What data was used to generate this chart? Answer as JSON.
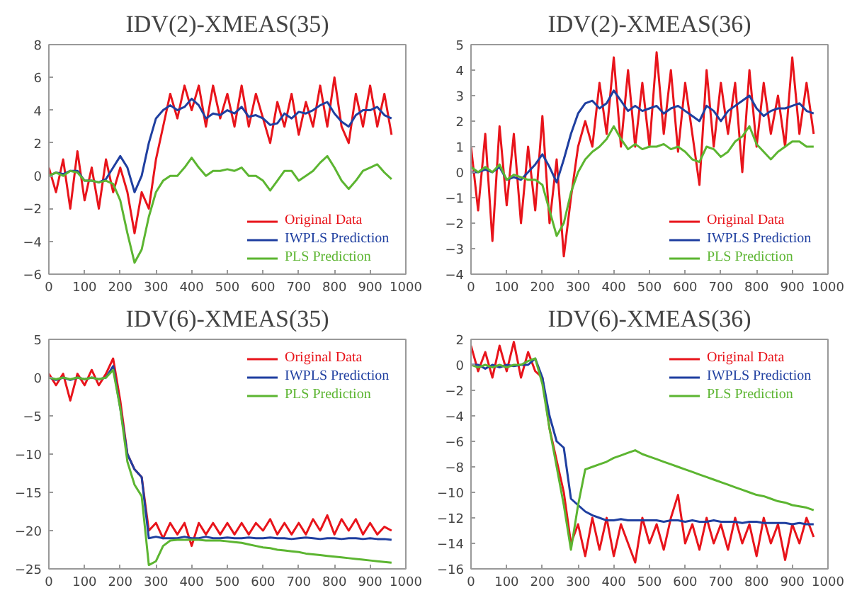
{
  "chart_data": [
    {
      "type": "line",
      "title": "IDV(2)-XMEAS(35)",
      "x": [
        0,
        20,
        40,
        60,
        80,
        100,
        120,
        140,
        160,
        180,
        200,
        220,
        240,
        260,
        280,
        300,
        320,
        340,
        360,
        380,
        400,
        420,
        440,
        460,
        480,
        500,
        520,
        540,
        560,
        580,
        600,
        620,
        640,
        660,
        680,
        700,
        720,
        740,
        760,
        780,
        800,
        820,
        840,
        860,
        880,
        900,
        920,
        940,
        960
      ],
      "xlim": [
        0,
        1000
      ],
      "xticks": [
        0,
        100,
        200,
        300,
        400,
        500,
        600,
        700,
        800,
        900,
        1000
      ],
      "ylim": [
        -6,
        8
      ],
      "yticks": [
        -6,
        -4,
        -2,
        0,
        2,
        4,
        6,
        8
      ],
      "grid": false,
      "legend": "bottom right",
      "series": [
        {
          "name": "Original Data",
          "color": "#e8141b",
          "values": [
            0.5,
            -1,
            1,
            -2,
            1.5,
            -1.5,
            0.5,
            -2,
            1,
            -1,
            0.5,
            -1,
            -3.5,
            -1,
            -2,
            1,
            3,
            5,
            3.5,
            5.5,
            4,
            5.5,
            3,
            5.5,
            3.5,
            5,
            3,
            5.5,
            3,
            5,
            3.5,
            2,
            4.5,
            3,
            5,
            2.5,
            4.5,
            3,
            5.5,
            3,
            6,
            3,
            2,
            5,
            3,
            5.5,
            3,
            5,
            2.5
          ]
        },
        {
          "name": "IWPLS Prediction",
          "color": "#1f3fa0",
          "values": [
            0,
            0.2,
            0.1,
            0.3,
            0.3,
            -0.3,
            -0.3,
            -0.4,
            -0.2,
            0.5,
            1.2,
            0.5,
            -1,
            0,
            2,
            3.5,
            4,
            4.3,
            4,
            4.2,
            4.7,
            4.3,
            3.5,
            3.8,
            3.7,
            4,
            3.8,
            4.2,
            3.6,
            3.7,
            3.5,
            3.1,
            3.2,
            3.8,
            3.5,
            3.9,
            3.8,
            4,
            4.3,
            4.5,
            3.8,
            3.3,
            3,
            3.7,
            4,
            4,
            4.2,
            3.7,
            3.5
          ]
        },
        {
          "name": "PLS Prediction",
          "color": "#5cb531",
          "values": [
            0,
            0.2,
            0,
            0.3,
            0.2,
            -0.3,
            -0.3,
            -0.4,
            -0.3,
            -0.5,
            -1.5,
            -3.5,
            -5.3,
            -4.5,
            -2.5,
            -1,
            -0.3,
            0,
            0,
            0.5,
            1.1,
            0.5,
            0,
            0.3,
            0.3,
            0.4,
            0.3,
            0.5,
            0,
            0,
            -0.3,
            -0.9,
            -0.3,
            0.3,
            0.3,
            -0.3,
            0,
            0.3,
            0.8,
            1.2,
            0.5,
            -0.3,
            -0.8,
            -0.3,
            0.3,
            0.5,
            0.7,
            0.2,
            -0.2
          ]
        }
      ]
    },
    {
      "type": "line",
      "title": "IDV(2)-XMEAS(36)",
      "x": [
        0,
        20,
        40,
        60,
        80,
        100,
        120,
        140,
        160,
        180,
        200,
        220,
        240,
        260,
        280,
        300,
        320,
        340,
        360,
        380,
        400,
        420,
        440,
        460,
        480,
        500,
        520,
        540,
        560,
        580,
        600,
        620,
        640,
        660,
        680,
        700,
        720,
        740,
        760,
        780,
        800,
        820,
        840,
        860,
        880,
        900,
        920,
        940,
        960
      ],
      "xlim": [
        0,
        1000
      ],
      "xticks": [
        0,
        100,
        200,
        300,
        400,
        500,
        600,
        700,
        800,
        900,
        1000
      ],
      "ylim": [
        -4,
        5
      ],
      "yticks": [
        -4,
        -3,
        -2,
        -1,
        0,
        1,
        2,
        3,
        4,
        5
      ],
      "grid": false,
      "legend": "bottom right",
      "series": [
        {
          "name": "Original Data",
          "color": "#e8141b",
          "values": [
            1,
            -1.5,
            1.5,
            -2.7,
            1.8,
            -1.3,
            1.5,
            -2,
            1,
            -1.5,
            2.2,
            -2,
            0.5,
            -3.3,
            -1,
            1,
            2,
            1,
            3.5,
            1.5,
            4.5,
            1,
            4,
            1,
            3.5,
            1,
            4.7,
            1.5,
            4,
            0.8,
            3.5,
            1.5,
            -0.5,
            4,
            1,
            3.5,
            1.5,
            3.5,
            0,
            4,
            1,
            3.5,
            1.5,
            3,
            1,
            4.5,
            1.5,
            3.5,
            1.5
          ]
        },
        {
          "name": "IWPLS Prediction",
          "color": "#1f3fa0",
          "values": [
            0,
            0,
            0.1,
            0,
            0.2,
            -0.3,
            -0.2,
            -0.3,
            0,
            0.3,
            0.7,
            0.2,
            -0.4,
            0.5,
            1.5,
            2.3,
            2.7,
            2.8,
            2.5,
            2.7,
            3.2,
            2.8,
            2.4,
            2.6,
            2.4,
            2.5,
            2.6,
            2.3,
            2.5,
            2.6,
            2.4,
            2.2,
            2,
            2.6,
            2.4,
            2,
            2.4,
            2.6,
            2.8,
            3,
            2.5,
            2.2,
            2.4,
            2.5,
            2.5,
            2.6,
            2.7,
            2.4,
            2.3
          ]
        },
        {
          "name": "PLS Prediction",
          "color": "#5cb531",
          "values": [
            0.2,
            0,
            0.2,
            0,
            0.3,
            -0.3,
            -0.1,
            -0.2,
            -0.3,
            -0.3,
            -0.5,
            -1.5,
            -2.5,
            -2,
            -0.8,
            0,
            0.5,
            0.8,
            1,
            1.3,
            1.8,
            1.3,
            0.9,
            1.1,
            0.9,
            1,
            1,
            1.1,
            0.9,
            1,
            0.8,
            0.5,
            0.4,
            1,
            0.9,
            0.6,
            0.8,
            1.2,
            1.4,
            1.8,
            1.1,
            0.8,
            0.5,
            0.8,
            1,
            1.2,
            1.2,
            1,
            1
          ]
        }
      ]
    },
    {
      "type": "line",
      "title": "IDV(6)-XMEAS(35)",
      "x": [
        0,
        20,
        40,
        60,
        80,
        100,
        120,
        140,
        160,
        180,
        200,
        220,
        240,
        260,
        280,
        300,
        320,
        340,
        360,
        380,
        400,
        420,
        440,
        460,
        480,
        500,
        520,
        540,
        560,
        580,
        600,
        620,
        640,
        660,
        680,
        700,
        720,
        740,
        760,
        780,
        800,
        820,
        840,
        860,
        880,
        900,
        920,
        940,
        960
      ],
      "xlim": [
        0,
        1000
      ],
      "xticks": [
        0,
        100,
        200,
        300,
        400,
        500,
        600,
        700,
        800,
        900,
        1000
      ],
      "ylim": [
        -25,
        5
      ],
      "yticks": [
        -25,
        -20,
        -15,
        -10,
        -5,
        0,
        5
      ],
      "grid": false,
      "legend": "top right",
      "series": [
        {
          "name": "Original Data",
          "color": "#e8141b",
          "values": [
            0.5,
            -1,
            0.5,
            -3,
            0.5,
            -1,
            1,
            -1,
            0.5,
            2.5,
            -3,
            -10,
            -12,
            -13,
            -20,
            -19,
            -21,
            -19,
            -20.5,
            -19,
            -22,
            -19,
            -20.5,
            -19,
            -20.5,
            -19,
            -20.5,
            -19,
            -20.5,
            -19,
            -20,
            -18.5,
            -20.5,
            -19,
            -20.5,
            -19,
            -20.5,
            -18.5,
            -20,
            -18,
            -20.5,
            -18.5,
            -20,
            -18.5,
            -20.5,
            -19,
            -20.5,
            -19.5,
            -20
          ]
        },
        {
          "name": "IWPLS Prediction",
          "color": "#1f3fa0",
          "values": [
            0,
            -0.3,
            0,
            -0.3,
            0,
            -0.2,
            0,
            -0.2,
            0,
            1.5,
            -4,
            -10,
            -12,
            -13,
            -21,
            -20.8,
            -21,
            -21,
            -21,
            -20.8,
            -21,
            -21,
            -20.8,
            -21,
            -21,
            -20.9,
            -21,
            -21,
            -20.9,
            -21,
            -21,
            -20.9,
            -21,
            -21,
            -21.1,
            -21,
            -20.9,
            -21,
            -21.1,
            -21,
            -21,
            -21.1,
            -21,
            -21,
            -21.1,
            -21,
            -21.1,
            -21.1,
            -21.2
          ]
        },
        {
          "name": "PLS Prediction",
          "color": "#5cb531",
          "values": [
            0,
            -0.2,
            0,
            -0.2,
            0,
            -0.2,
            0,
            -0.2,
            0,
            1,
            -4,
            -11,
            -14,
            -15.5,
            -24.5,
            -24,
            -22,
            -21.3,
            -21.2,
            -21.2,
            -21.2,
            -21.2,
            -21.3,
            -21.3,
            -21.3,
            -21.4,
            -21.5,
            -21.6,
            -21.8,
            -22,
            -22.2,
            -22.3,
            -22.5,
            -22.6,
            -22.7,
            -22.8,
            -23,
            -23.1,
            -23.2,
            -23.3,
            -23.4,
            -23.5,
            -23.6,
            -23.7,
            -23.8,
            -23.9,
            -24,
            -24.1,
            -24.2
          ]
        }
      ]
    },
    {
      "type": "line",
      "title": "IDV(6)-XMEAS(36)",
      "x": [
        0,
        20,
        40,
        60,
        80,
        100,
        120,
        140,
        160,
        180,
        200,
        220,
        240,
        260,
        280,
        300,
        320,
        340,
        360,
        380,
        400,
        420,
        440,
        460,
        480,
        500,
        520,
        540,
        560,
        580,
        600,
        620,
        640,
        660,
        680,
        700,
        720,
        740,
        760,
        780,
        800,
        820,
        840,
        860,
        880,
        900,
        920,
        940,
        960
      ],
      "xlim": [
        0,
        1000
      ],
      "xticks": [
        0,
        100,
        200,
        300,
        400,
        500,
        600,
        700,
        800,
        900,
        1000
      ],
      "ylim": [
        -16,
        2
      ],
      "yticks": [
        -16,
        -14,
        -12,
        -10,
        -8,
        -6,
        -4,
        -2,
        0,
        2
      ],
      "grid": false,
      "legend": "top right",
      "series": [
        {
          "name": "Original Data",
          "color": "#e8141b",
          "values": [
            1.5,
            -0.5,
            1,
            -1,
            1.5,
            -0.5,
            1.8,
            -1,
            1,
            -0.5,
            -1,
            -5,
            -7.5,
            -10,
            -14,
            -12.5,
            -15,
            -12,
            -14.5,
            -12,
            -15,
            -12.5,
            -14,
            -15.5,
            -12,
            -14,
            -12.5,
            -14.5,
            -12,
            -10.2,
            -14,
            -12.5,
            -14.5,
            -12,
            -14,
            -12.5,
            -14.5,
            -12,
            -14,
            -12.5,
            -15,
            -12,
            -14,
            -12.5,
            -15.3,
            -12.5,
            -14,
            -12,
            -13.5
          ]
        },
        {
          "name": "IWPLS Prediction",
          "color": "#1f3fa0",
          "values": [
            0,
            0,
            -0.3,
            0,
            -0.2,
            0,
            -0.1,
            0,
            0,
            0.5,
            -1,
            -4,
            -6,
            -6.5,
            -10.5,
            -11,
            -11.5,
            -11.8,
            -12,
            -12.2,
            -12.2,
            -12.1,
            -12.2,
            -12.2,
            -12.2,
            -12.2,
            -12.2,
            -12.3,
            -12.2,
            -12.2,
            -12.3,
            -12.2,
            -12.3,
            -12.3,
            -12.2,
            -12.3,
            -12.3,
            -12.3,
            -12.4,
            -12.3,
            -12.3,
            -12.4,
            -12.4,
            -12.4,
            -12.4,
            -12.5,
            -12.4,
            -12.5,
            -12.5
          ]
        },
        {
          "name": "PLS Prediction",
          "color": "#5cb531",
          "values": [
            0,
            -0.2,
            0,
            -0.2,
            0,
            -0.2,
            0,
            0,
            0.3,
            0.5,
            -1.5,
            -5,
            -8,
            -11,
            -14.5,
            -11,
            -8.2,
            -8,
            -7.8,
            -7.6,
            -7.3,
            -7.1,
            -6.9,
            -6.7,
            -7,
            -7.2,
            -7.4,
            -7.6,
            -7.8,
            -8,
            -8.2,
            -8.4,
            -8.6,
            -8.8,
            -9,
            -9.2,
            -9.4,
            -9.6,
            -9.8,
            -10,
            -10.2,
            -10.3,
            -10.5,
            -10.7,
            -10.8,
            -11,
            -11.1,
            -11.2,
            -11.4
          ]
        }
      ]
    }
  ]
}
